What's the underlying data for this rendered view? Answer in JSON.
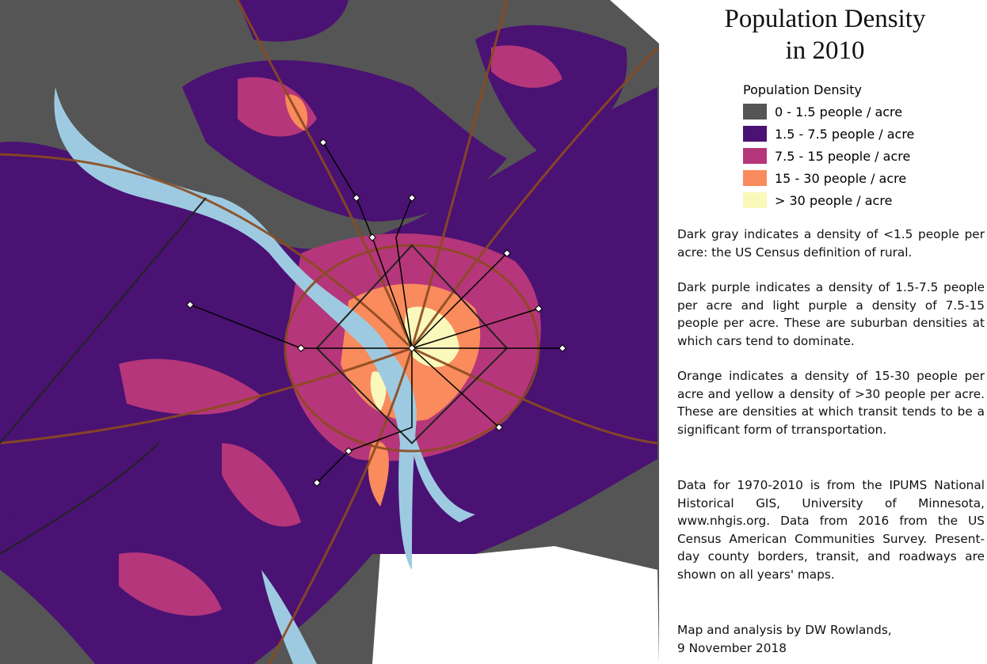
{
  "title_lines": [
    "Population Density",
    "in 2010"
  ],
  "legend": {
    "title": "Population Density",
    "items": [
      {
        "label": "0 - 1.5 people / acre",
        "color": "#555555"
      },
      {
        "label": "1.5 - 7.5 people / acre",
        "color": "#4a1273"
      },
      {
        "label": "7.5 - 15 people / acre",
        "color": "#b5367a"
      },
      {
        "label": "15 - 30 people / acre",
        "color": "#f98b5c"
      },
      {
        "label": "> 30 people / acre",
        "color": "#fbf8bb"
      }
    ]
  },
  "notes": [
    "Dark gray indicates a density of <1.5 people per acre: the US Census definition of rural.",
    "Dark purple indicates a density of 1.5-7.5 people per acre and light purple a density of 7.5-15 people per acre.  These are suburban densities at which cars tend to dominate.",
    "Orange indicates a density of 15-30 people per acre and yellow a density of >30 people per acre.  These are densities at which transit tends to be a significant form of trransportation.",
    "Data for 1970-2010 is from the IPUMS National Historical GIS, University of Minnesota, www.nhgis.org.  Data from 2016 from the US Census American Communities Survey. Present-day county borders, transit, and roadways are shown on all years' maps."
  ],
  "credit_lines": [
    "Map and analysis by DW Rowlands,",
    "9 November 2018"
  ]
}
